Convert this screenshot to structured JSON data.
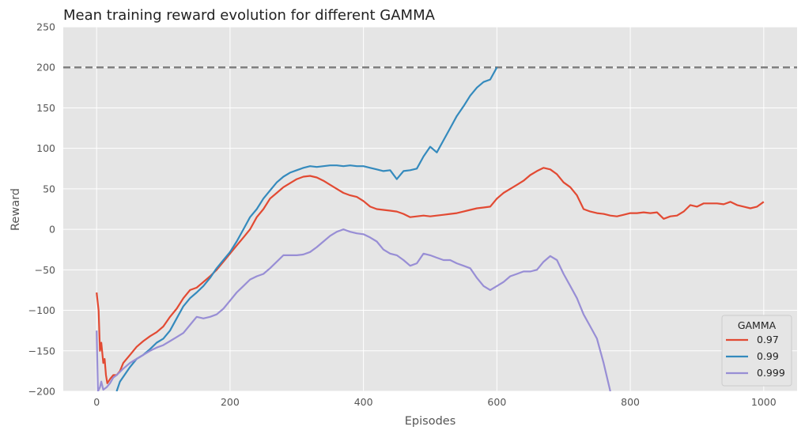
{
  "chart_data": {
    "type": "line",
    "title": "Mean training reward evolution for different GAMMA",
    "xlabel": "Episodes",
    "ylabel": "Reward",
    "xlim": [
      -50,
      1050
    ],
    "ylim": [
      -200,
      250
    ],
    "xticks": [
      0,
      200,
      400,
      600,
      800,
      1000
    ],
    "yticks": [
      -200,
      -150,
      -100,
      -50,
      0,
      50,
      100,
      150,
      200,
      250
    ],
    "grid": true,
    "reference_line": {
      "y": 200,
      "style": "dashed",
      "color": "#808080"
    },
    "legend": {
      "title": "GAMMA",
      "position": "bottom-right"
    },
    "series": [
      {
        "name": "0.97",
        "color": "#E24A33",
        "x": [
          0,
          3,
          5,
          7,
          10,
          12,
          14,
          16,
          20,
          25,
          30,
          35,
          40,
          50,
          60,
          70,
          80,
          90,
          100,
          110,
          120,
          130,
          140,
          150,
          160,
          170,
          180,
          190,
          200,
          210,
          220,
          230,
          240,
          250,
          260,
          270,
          280,
          290,
          300,
          310,
          320,
          330,
          340,
          350,
          360,
          370,
          380,
          390,
          400,
          410,
          420,
          430,
          440,
          450,
          460,
          470,
          480,
          490,
          500,
          510,
          520,
          530,
          540,
          550,
          560,
          570,
          580,
          590,
          600,
          610,
          620,
          630,
          640,
          650,
          660,
          670,
          680,
          690,
          700,
          710,
          720,
          730,
          740,
          750,
          760,
          770,
          780,
          790,
          800,
          810,
          820,
          830,
          840,
          850,
          860,
          870,
          880,
          890,
          900,
          910,
          920,
          930,
          940,
          950,
          960,
          970,
          980,
          990,
          1000
        ],
        "values": [
          -78,
          -100,
          -150,
          -140,
          -165,
          -160,
          -180,
          -190,
          -185,
          -180,
          -180,
          -175,
          -165,
          -155,
          -145,
          -138,
          -132,
          -127,
          -120,
          -108,
          -98,
          -85,
          -75,
          -72,
          -65,
          -58,
          -50,
          -40,
          -30,
          -20,
          -10,
          0,
          15,
          25,
          38,
          45,
          52,
          57,
          62,
          65,
          66,
          64,
          60,
          55,
          50,
          45,
          42,
          40,
          35,
          28,
          25,
          24,
          23,
          22,
          19,
          15,
          16,
          17,
          16,
          17,
          18,
          19,
          20,
          22,
          24,
          26,
          27,
          28,
          38,
          45,
          50,
          55,
          60,
          67,
          72,
          76,
          74,
          68,
          58,
          52,
          42,
          25,
          22,
          20,
          19,
          17,
          16,
          18,
          20,
          20,
          21,
          20,
          21,
          13,
          16,
          17,
          22,
          30,
          28,
          32,
          32,
          32,
          31,
          34,
          30,
          28,
          26,
          28,
          34
        ]
      },
      {
        "name": "0.99",
        "color": "#348ABD",
        "x": [
          30,
          35,
          40,
          50,
          60,
          70,
          80,
          90,
          100,
          110,
          120,
          130,
          140,
          150,
          160,
          170,
          180,
          190,
          200,
          210,
          220,
          230,
          240,
          250,
          260,
          270,
          280,
          290,
          300,
          310,
          320,
          330,
          340,
          350,
          360,
          370,
          380,
          390,
          400,
          410,
          420,
          430,
          440,
          450,
          460,
          470,
          480,
          490,
          500,
          510,
          520,
          530,
          540,
          550,
          560,
          570,
          580,
          590,
          600
        ],
        "values": [
          -200,
          -188,
          -182,
          -170,
          -160,
          -155,
          -148,
          -140,
          -135,
          -125,
          -110,
          -95,
          -85,
          -78,
          -70,
          -60,
          -48,
          -38,
          -28,
          -15,
          0,
          15,
          25,
          38,
          48,
          58,
          65,
          70,
          73,
          76,
          78,
          77,
          78,
          79,
          79,
          78,
          79,
          78,
          78,
          76,
          74,
          72,
          73,
          62,
          72,
          73,
          75,
          90,
          102,
          95,
          110,
          125,
          140,
          152,
          165,
          175,
          182,
          185,
          200
        ]
      },
      {
        "name": "0.999",
        "color": "#988ED5",
        "x": [
          0,
          2,
          5,
          7,
          10,
          15,
          20,
          25,
          30,
          40,
          50,
          60,
          70,
          80,
          90,
          100,
          110,
          120,
          130,
          140,
          150,
          160,
          170,
          180,
          190,
          200,
          210,
          220,
          230,
          240,
          250,
          260,
          270,
          280,
          290,
          300,
          310,
          320,
          330,
          340,
          350,
          360,
          370,
          380,
          390,
          400,
          410,
          420,
          430,
          440,
          450,
          460,
          470,
          480,
          490,
          500,
          510,
          520,
          530,
          540,
          550,
          560,
          570,
          580,
          590,
          600,
          610,
          620,
          630,
          640,
          650,
          660,
          670,
          680,
          690,
          700,
          710,
          720,
          730,
          740,
          750,
          760,
          770
        ],
        "values": [
          -125,
          -200,
          -195,
          -188,
          -198,
          -195,
          -190,
          -183,
          -180,
          -172,
          -165,
          -160,
          -155,
          -150,
          -146,
          -143,
          -138,
          -133,
          -128,
          -118,
          -108,
          -110,
          -108,
          -105,
          -98,
          -88,
          -78,
          -70,
          -62,
          -58,
          -55,
          -48,
          -40,
          -32,
          -32,
          -32,
          -31,
          -28,
          -22,
          -15,
          -8,
          -3,
          0,
          -3,
          -5,
          -6,
          -10,
          -15,
          -25,
          -30,
          -32,
          -38,
          -45,
          -42,
          -30,
          -32,
          -35,
          -38,
          -38,
          -42,
          -45,
          -48,
          -60,
          -70,
          -75,
          -70,
          -65,
          -58,
          -55,
          -52,
          -52,
          -50,
          -40,
          -33,
          -38,
          -55,
          -70,
          -85,
          -105,
          -120,
          -135,
          -165,
          -200
        ]
      }
    ]
  }
}
